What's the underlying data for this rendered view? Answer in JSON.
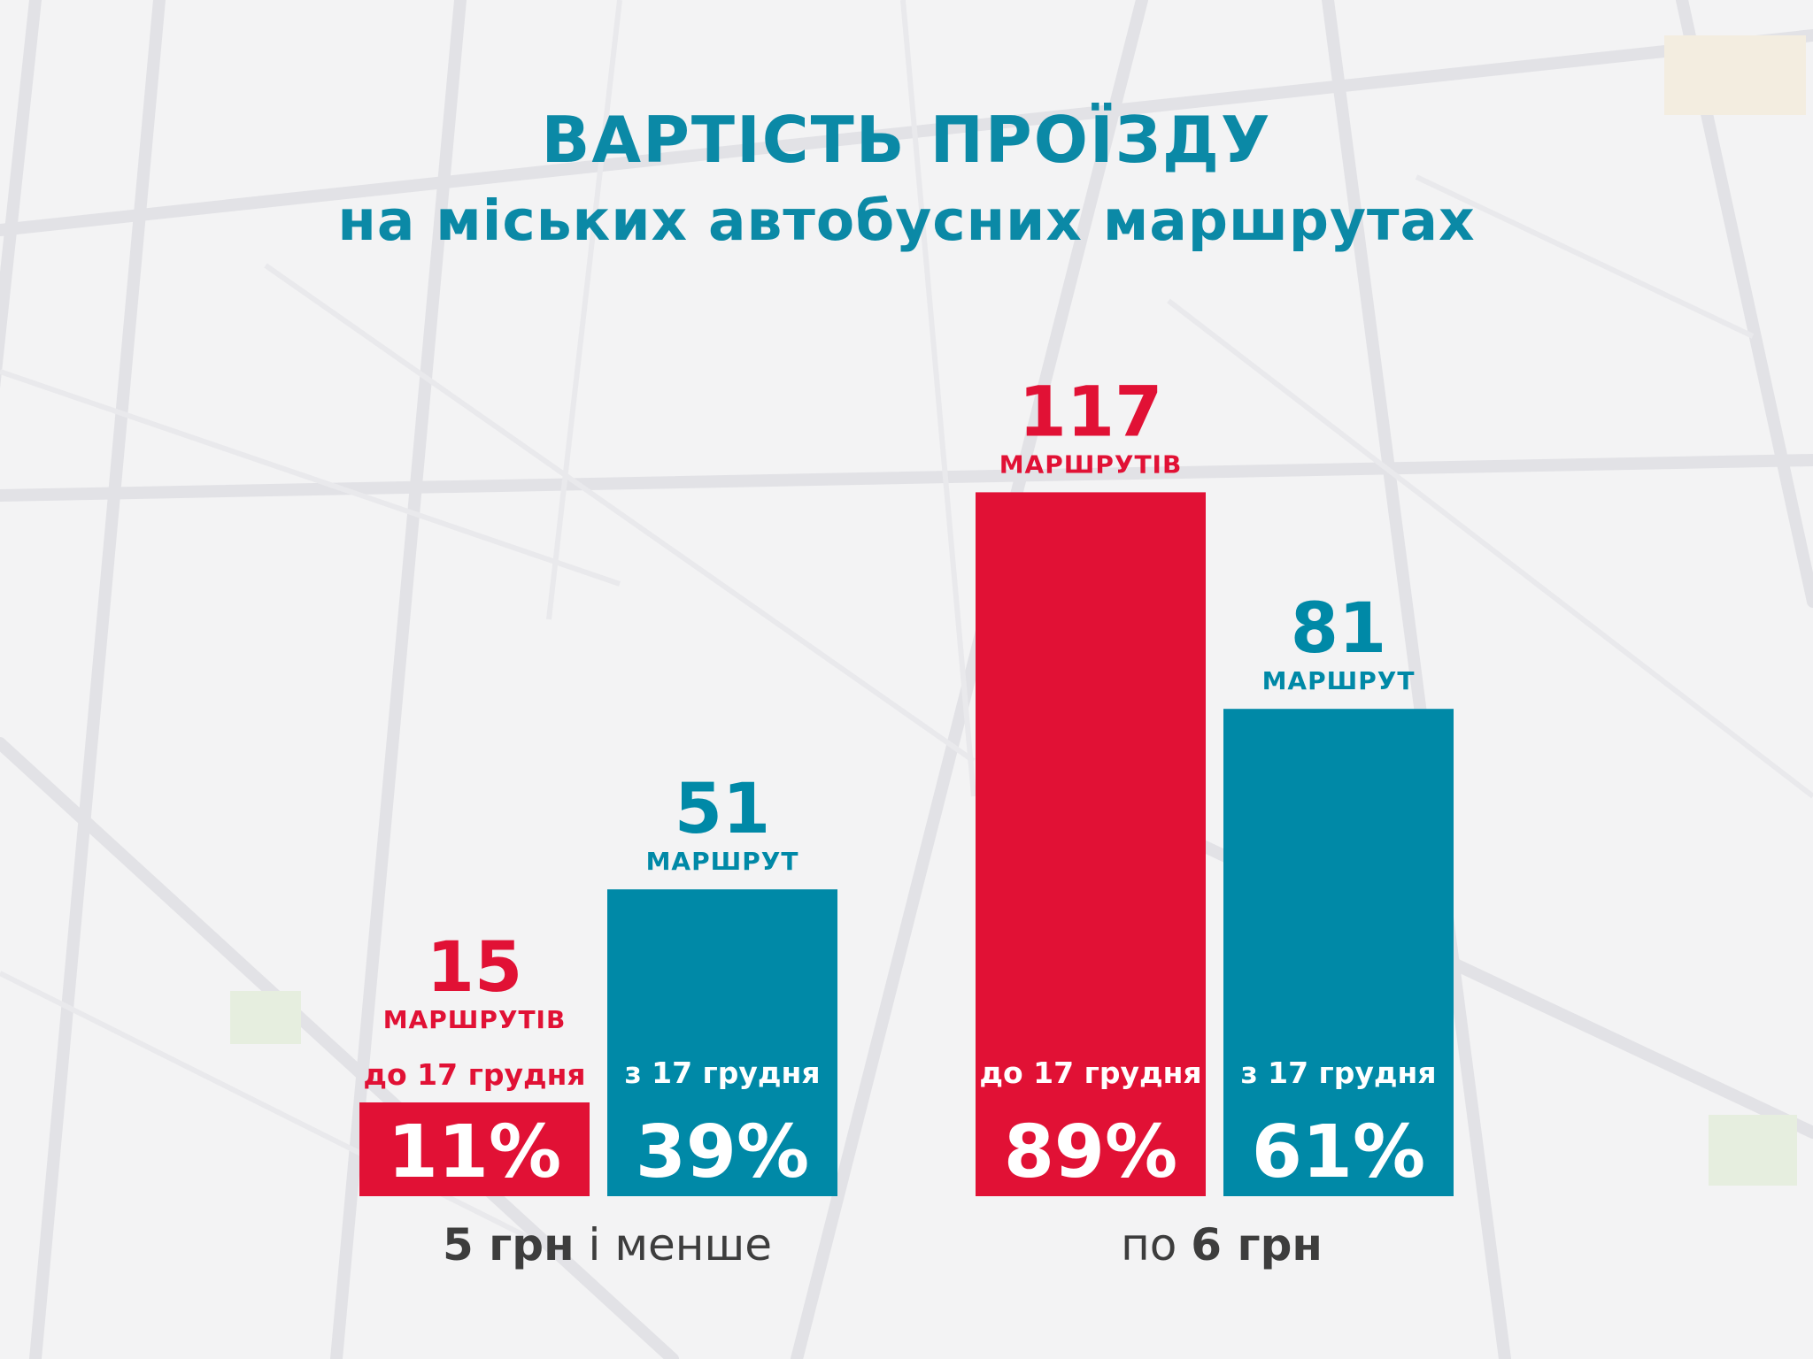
{
  "title": {
    "line1": "ВАРТІСТЬ ПРОЇЗДУ",
    "line2": "на міських автобусних маршрутах"
  },
  "colors": {
    "red": "#e11135",
    "teal": "#0089a7",
    "title": "#0b89a6",
    "group_label": "#3d3d3d"
  },
  "chart_data": {
    "type": "bar",
    "groups": [
      {
        "label_strong": "5 грн",
        "label_rest": " і менше",
        "bars": [
          {
            "series": "до 17 грудня",
            "value": 15,
            "unit": "МАРШРУТІВ",
            "percent_label": "11%",
            "color": "#e11135"
          },
          {
            "series": "з 17 грудня",
            "value": 51,
            "unit": "МАРШРУТ",
            "percent_label": "39%",
            "color": "#0089a7"
          }
        ]
      },
      {
        "label_prefix": "по ",
        "label_strong": "6 грн",
        "bars": [
          {
            "series": "до 17 грудня",
            "value": 117,
            "unit": "МАРШРУТІВ",
            "percent_label": "89%",
            "color": "#e11135"
          },
          {
            "series": "з 17 грудня",
            "value": 81,
            "unit": "МАРШРУТ",
            "percent_label": "61%",
            "color": "#0089a7"
          }
        ]
      }
    ],
    "series": [
      {
        "name": "до 17 грудня",
        "values": [
          15,
          117
        ]
      },
      {
        "name": "з 17 грудня",
        "values": [
          51,
          81
        ]
      }
    ],
    "ylim": [
      0,
      132
    ],
    "grid": false,
    "legend": "none"
  }
}
